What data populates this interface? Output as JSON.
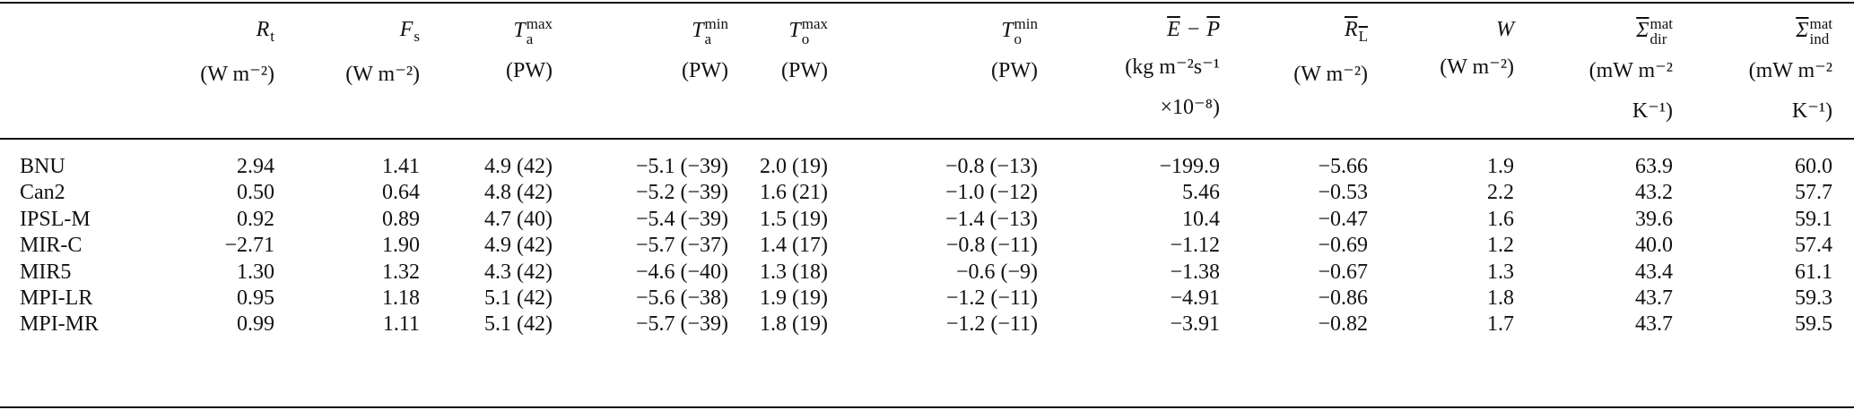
{
  "table": {
    "columns": [
      {
        "symbol": "R",
        "sub": "t",
        "units": [
          "(W m⁻²)"
        ]
      },
      {
        "symbol": "F",
        "sub": "s",
        "units": [
          "(W m⁻²)"
        ]
      },
      {
        "symbol": "T",
        "sub": "a",
        "sup": "max",
        "units": [
          "(PW)"
        ]
      },
      {
        "symbol": "T",
        "sub": "a",
        "sup": "min",
        "units": [
          "(PW)"
        ]
      },
      {
        "symbol": "T",
        "sub": "o",
        "sup": "max",
        "units": [
          "(PW)"
        ]
      },
      {
        "symbol": "T",
        "sub": "o",
        "sup": "min",
        "units": [
          "(PW)"
        ]
      },
      {
        "symbol": "E",
        "op": "−",
        "symbol2": "P",
        "overline": true,
        "units": [
          "(kg m⁻²s⁻¹",
          "×10⁻⁸)"
        ]
      },
      {
        "symbol": "R",
        "sub": "L",
        "overline": true,
        "units": [
          "(W m⁻²)"
        ]
      },
      {
        "symbol": "W",
        "units": [
          "(W m⁻²)"
        ]
      },
      {
        "symbol": "Σ",
        "sub": "dir",
        "sup": "mat",
        "overline": true,
        "units": [
          "(mW m⁻²",
          "K⁻¹)"
        ]
      },
      {
        "symbol": "Σ",
        "sub": "ind",
        "sup": "mat",
        "overline": true,
        "units": [
          "(mW m⁻²",
          "K⁻¹)"
        ]
      }
    ],
    "rows": [
      {
        "name": "BNU",
        "cells": [
          "2.94",
          "1.41",
          "4.9 (42)",
          "−5.1 (−39)",
          "2.0 (19)",
          "−0.8 (−13)",
          "−199.9",
          "−5.66",
          "1.9",
          "63.9",
          "60.0"
        ]
      },
      {
        "name": "Can2",
        "cells": [
          "0.50",
          "0.64",
          "4.8 (42)",
          "−5.2 (−39)",
          "1.6 (21)",
          "−1.0 (−12)",
          "5.46",
          "−0.53",
          "2.2",
          "43.2",
          "57.7"
        ]
      },
      {
        "name": "IPSL-M",
        "cells": [
          "0.92",
          "0.89",
          "4.7 (40)",
          "−5.4 (−39)",
          "1.5 (19)",
          "−1.4 (−13)",
          "10.4",
          "−0.47",
          "1.6",
          "39.6",
          "59.1"
        ]
      },
      {
        "name": "MIR-C",
        "cells": [
          "−2.71",
          "1.90",
          "4.9 (42)",
          "−5.7 (−37)",
          "1.4 (17)",
          "−0.8 (−11)",
          "−1.12",
          "−0.69",
          "1.2",
          "40.0",
          "57.4"
        ]
      },
      {
        "name": "MIR5",
        "cells": [
          "1.30",
          "1.32",
          "4.3 (42)",
          "−4.6 (−40)",
          "1.3 (18)",
          "−0.6 (−9)",
          "−1.38",
          "−0.67",
          "1.3",
          "43.4",
          "61.1"
        ]
      },
      {
        "name": "MPI-LR",
        "cells": [
          "0.95",
          "1.18",
          "5.1 (42)",
          "−5.6 (−38)",
          "1.9 (19)",
          "−1.2 (−11)",
          "−4.91",
          "−0.86",
          "1.8",
          "43.7",
          "59.3"
        ]
      },
      {
        "name": "MPI-MR",
        "cells": [
          "0.99",
          "1.11",
          "5.1 (42)",
          "−5.7 (−39)",
          "1.8 (19)",
          "−1.2 (−11)",
          "−3.91",
          "−0.82",
          "1.7",
          "43.7",
          "59.5"
        ]
      }
    ]
  }
}
